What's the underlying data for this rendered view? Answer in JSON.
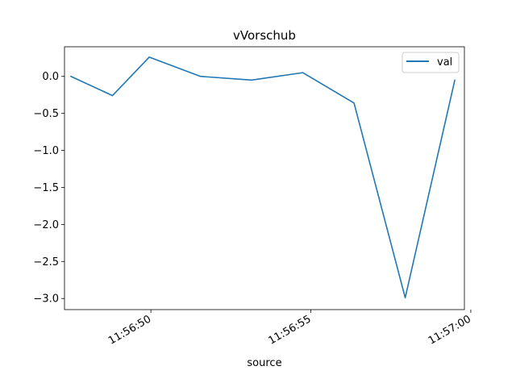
{
  "chart_data": {
    "type": "line",
    "title": "vVorschub",
    "xlabel": "source",
    "ylabel": "",
    "x": [
      "11:56:47.500",
      "11:56:48.800",
      "11:56:49.950",
      "11:56:51.550",
      "11:56:53.150",
      "11:56:54.750",
      "11:56:56.350",
      "11:56:57.950",
      "11:56:59.500"
    ],
    "series": [
      {
        "name": "val",
        "color": "#1f77b4",
        "values": [
          0.0,
          -0.26,
          0.26,
          0.0,
          -0.05,
          0.05,
          -0.36,
          -2.99,
          -0.05
        ]
      }
    ],
    "xlim": [
      "11:56:47.300",
      "11:56:59.800"
    ],
    "ylim": [
      -3.15,
      0.4
    ],
    "x_ticks": [
      "11:56:50",
      "11:56:55",
      "11:57:00"
    ],
    "y_ticks": [
      "0.0",
      "−0.5",
      "−1.0",
      "−1.5",
      "−2.0",
      "−2.5",
      "−3.0"
    ],
    "y_tick_values": [
      0.0,
      -0.5,
      -1.0,
      -1.5,
      -2.0,
      -2.5,
      -3.0
    ],
    "grid": false,
    "legend_position": "top-right"
  }
}
